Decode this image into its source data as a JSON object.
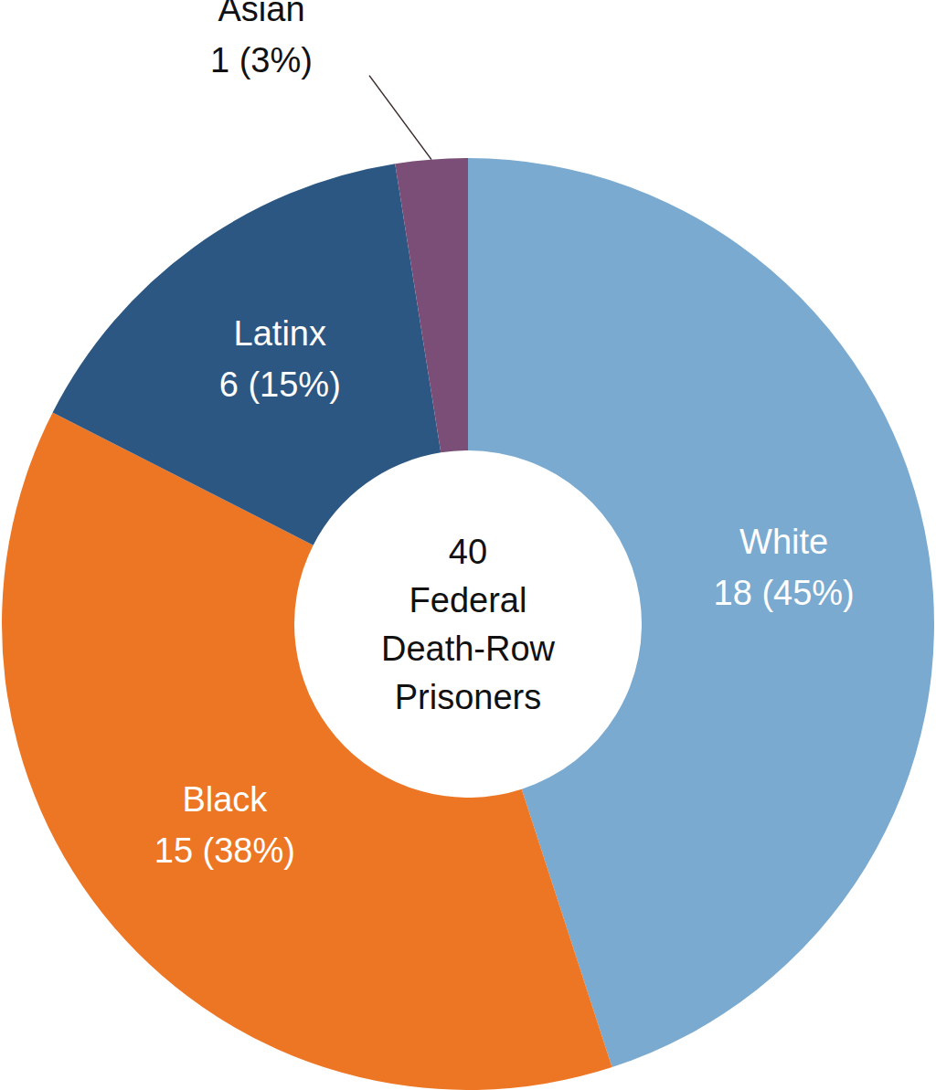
{
  "chart_data": {
    "type": "donut",
    "categories": [
      "White",
      "Black",
      "Latinx",
      "Asian"
    ],
    "values": [
      18,
      15,
      6,
      1
    ],
    "value_labels": [
      "18 (45%)",
      "15 (38%)",
      "6 (15%)",
      "1 (3%)"
    ],
    "colors": [
      "#7aaad0",
      "#ed7624",
      "#2d5783",
      "#7b4e78"
    ],
    "data_labels": true,
    "center_label": "40 Federal Death-Row Prisoners"
  }
}
